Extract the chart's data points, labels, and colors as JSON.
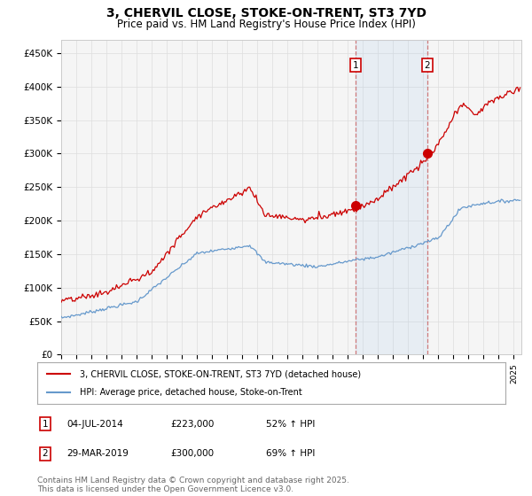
{
  "title": "3, CHERVIL CLOSE, STOKE-ON-TRENT, ST3 7YD",
  "subtitle": "Price paid vs. HM Land Registry's House Price Index (HPI)",
  "title_fontsize": 10,
  "subtitle_fontsize": 8.5,
  "red_line_color": "#cc0000",
  "blue_line_color": "#6699cc",
  "background_color": "#ffffff",
  "plot_bg_color": "#f5f5f5",
  "grid_color": "#dddddd",
  "yticks": [
    0,
    50000,
    100000,
    150000,
    200000,
    250000,
    300000,
    350000,
    400000,
    450000
  ],
  "ylim": [
    0,
    470000
  ],
  "sale1_date": "04-JUL-2014",
  "sale1_price": 223000,
  "sale1_hpi": "52% ↑ HPI",
  "sale1_label": "1",
  "sale1_year": 2014.5,
  "sale2_date": "29-MAR-2019",
  "sale2_price": 300000,
  "sale2_hpi": "69% ↑ HPI",
  "sale2_label": "2",
  "sale2_year": 2019.25,
  "legend1": "3, CHERVIL CLOSE, STOKE-ON-TRENT, ST3 7YD (detached house)",
  "legend2": "HPI: Average price, detached house, Stoke-on-Trent",
  "footnote": "Contains HM Land Registry data © Crown copyright and database right 2025.\nThis data is licensed under the Open Government Licence v3.0.",
  "footnote_fontsize": 6.5,
  "xmin": 1995,
  "xmax": 2025.5
}
